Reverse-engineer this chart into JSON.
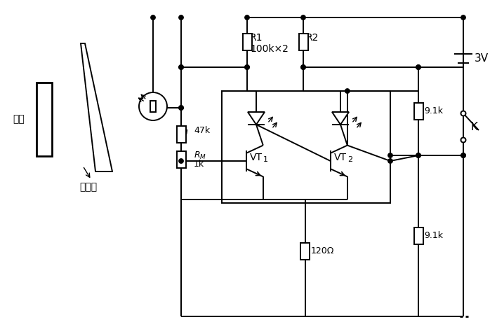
{
  "bg_color": "#ffffff",
  "lc": "#000000",
  "lw": 1.4,
  "labels": {
    "R1": "R1",
    "R2": "R2",
    "R1R2_val": "100k×2",
    "R3_val": "47k",
    "RM_label": "R",
    "RM_sub": "M",
    "RM_val": "1k",
    "R_91k_top": "9.1k",
    "R_91k_bot": "9.1k",
    "R_120": "120Ω",
    "VT1": "VT",
    "VT1_sub": "1",
    "VT2": "VT",
    "VT2_sub": "2",
    "battery": "3V",
    "K_label": "K",
    "kong_ban": "孔板",
    "mi_du_ban": "密度板"
  }
}
